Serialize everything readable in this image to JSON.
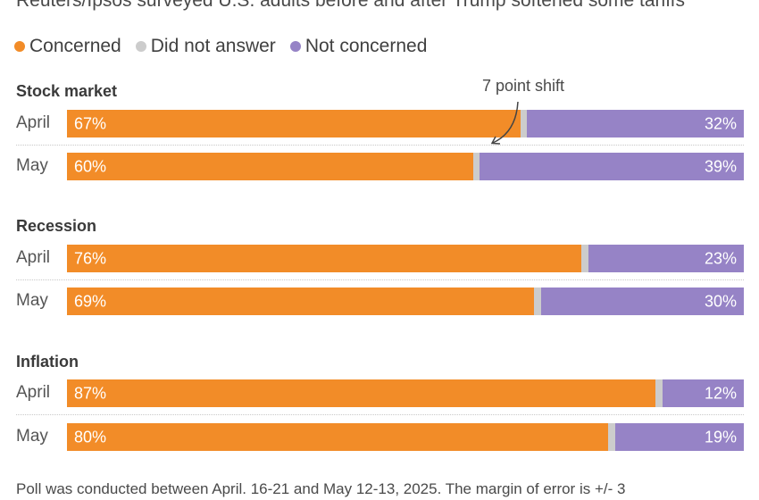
{
  "colors": {
    "concerned": "#f28c28",
    "did_not_answer": "#cccccc",
    "not_concerned": "#9683c6"
  },
  "chart_data": {
    "type": "bar",
    "subtitle": "Reuters/Ipsos surveyed U.S. adults before and after Trump softened some tariffs",
    "legend": [
      "Concerned",
      "Did not answer",
      "Not concerned"
    ],
    "groups": [
      {
        "title": "Stock market",
        "rows": [
          {
            "label": "April",
            "concerned": 67,
            "not_concerned": 32,
            "concerned_label": "67%",
            "not_concerned_label": "32%"
          },
          {
            "label": "May",
            "concerned": 60,
            "not_concerned": 39,
            "concerned_label": "60%",
            "not_concerned_label": "39%"
          }
        ]
      },
      {
        "title": "Recession",
        "rows": [
          {
            "label": "April",
            "concerned": 76,
            "not_concerned": 23,
            "concerned_label": "76%",
            "not_concerned_label": "23%"
          },
          {
            "label": "May",
            "concerned": 69,
            "not_concerned": 30,
            "concerned_label": "69%",
            "not_concerned_label": "30%"
          }
        ]
      },
      {
        "title": "Inflation",
        "rows": [
          {
            "label": "April",
            "concerned": 87,
            "not_concerned": 12,
            "concerned_label": "87%",
            "not_concerned_label": "12%"
          },
          {
            "label": "May",
            "concerned": 80,
            "not_concerned": 19,
            "concerned_label": "80%",
            "not_concerned_label": "19%"
          }
        ]
      }
    ],
    "annotation": "7 point shift",
    "footer": "Poll was conducted between April. 16-21 and May 12-13, 2025. The margin of error is +/- 3"
  }
}
